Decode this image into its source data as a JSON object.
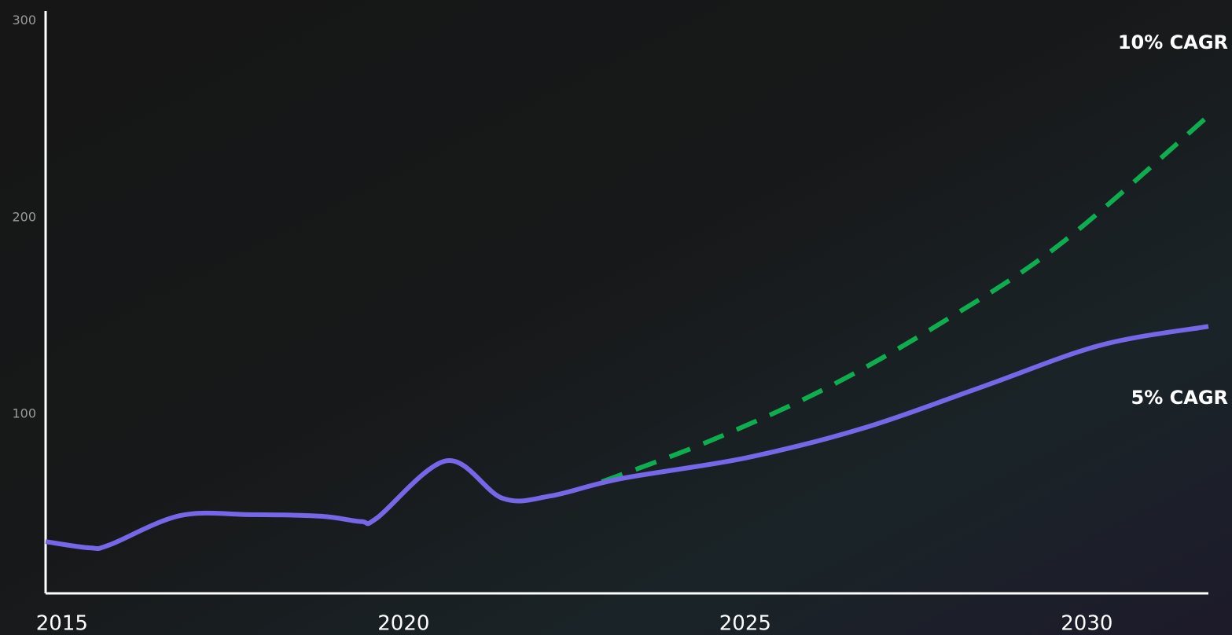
{
  "chart_data": {
    "type": "line",
    "annotations": [
      "10% CAGR",
      "5% CAGR"
    ],
    "series": [
      {
        "color": "#7667e8",
        "line_style": "solid",
        "x": [
          2014.76,
          2015.41,
          2015.7,
          2016.73,
          2017.77,
          2018.8,
          2019.38,
          2019.61,
          2020.63,
          2021.45,
          2022.15,
          2023.18,
          2025.03,
          2026.75,
          2028.47,
          2030.2,
          2031.78
        ],
        "values": [
          35.3,
          32.1,
          33.7,
          48.5,
          49.0,
          48.2,
          45.5,
          47.3,
          76.4,
          57.3,
          58.5,
          67.3,
          78.0,
          93.2,
          114.0,
          135.1,
          144.7
        ]
      },
      {
        "color": "#0ead4f",
        "line_style": "dashed",
        "x": [
          2022.9,
          2024.45,
          2026.18,
          2027.9,
          2029.63,
          2031.78
        ],
        "values": [
          65.7,
          86.0,
          113.2,
          147.1,
          187.0,
          251.7
        ]
      }
    ],
    "xlim": [
      2014.76,
      2031.78
    ],
    "xticks": [
      2015,
      2020,
      2025,
      2030
    ],
    "ylim": [
      9,
      305
    ],
    "yticks": [
      100,
      200,
      300
    ]
  }
}
